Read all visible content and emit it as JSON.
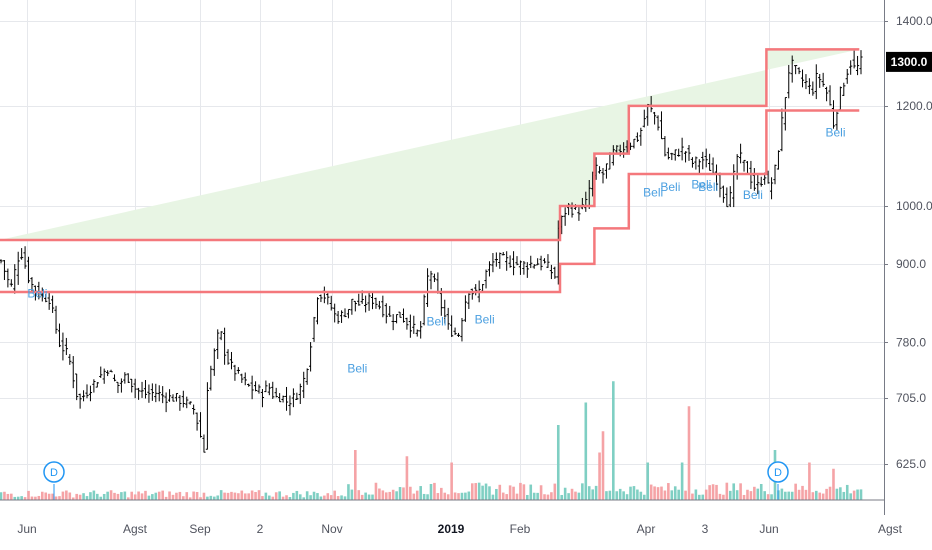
{
  "chart_data": {
    "type": "bar",
    "subtype": "ohlc-with-volume-and-channel",
    "title": "",
    "y_axis": {
      "scale": "log",
      "range": [
        590,
        1480
      ],
      "ticks": [
        {
          "value": 625,
          "label": "625.0"
        },
        {
          "value": 705,
          "label": "705.0"
        },
        {
          "value": 780,
          "label": "780.0"
        },
        {
          "value": 900,
          "label": "900.0"
        },
        {
          "value": 1000,
          "label": "1000.0"
        },
        {
          "value": 1200,
          "label": "1200.0"
        },
        {
          "value": 1400,
          "label": "1400.0"
        }
      ]
    },
    "x_axis": {
      "ticks": [
        {
          "label": "Jun",
          "bold": false
        },
        {
          "label": "Agst",
          "bold": false
        },
        {
          "label": "Sep",
          "bold": false
        },
        {
          "label": "2",
          "bold": false
        },
        {
          "label": "Nov",
          "bold": false
        },
        {
          "label": "2019",
          "bold": true
        },
        {
          "label": "Feb",
          "bold": false
        },
        {
          "label": "Apr",
          "bold": false
        },
        {
          "label": "3",
          "bold": false
        },
        {
          "label": "Jun",
          "bold": false
        },
        {
          "label": "Agst",
          "bold": false
        }
      ]
    },
    "last_price": {
      "value": 1300,
      "label": "1300.0"
    },
    "channel_segments": [
      {
        "upper": 940,
        "lower": 855
      },
      {
        "upper": 1000,
        "lower": 900
      },
      {
        "upper": 1100,
        "lower": 960
      },
      {
        "upper": 1200,
        "lower": 1060
      },
      {
        "upper": 1330,
        "lower": 1190
      }
    ],
    "price_anchors": [
      [
        905,
        860,
        925,
        870,
        850,
        845,
        780,
        760,
        700,
        715,
        730,
        745,
        720,
        735,
        715,
        710,
        712,
        706,
        705,
        700,
        690,
        640
      ],
      [
        720,
        760,
        800,
        760,
        745,
        735,
        725,
        718,
        715,
        712,
        720,
        705,
        708,
        700,
        705,
        715,
        735,
        790,
        855,
        850,
        835,
        815,
        820,
        830
      ],
      [
        840,
        835,
        845,
        832,
        815,
        820,
        805,
        790,
        895,
        845,
        800,
        790,
        860,
        850,
        890,
        910,
        905,
        900,
        898,
        902,
        900,
        880
      ],
      [
        960,
        1000,
        990,
        1000,
        1070,
        1060,
        1100,
        1110,
        1120,
        1135,
        1200,
        1170,
        1090,
        1100,
        1110,
        1080,
        1090,
        1070,
        1040,
        1000,
        1100,
        1070,
        1030,
        1060
      ],
      [
        1035,
        1050,
        1120,
        1210,
        1300,
        1280,
        1260,
        1250,
        1230,
        1270,
        1250,
        1220,
        1160,
        1220,
        1260,
        1300,
        1280,
        1300
      ]
    ],
    "buy_signals": [
      {
        "label": "Beli"
      },
      {
        "label": "Beli"
      },
      {
        "label": "Beli"
      },
      {
        "label": "Beli"
      },
      {
        "label": "Beli"
      },
      {
        "label": "Beli"
      },
      {
        "label": "Beli"
      },
      {
        "label": "Beli"
      },
      {
        "label": "Beli"
      },
      {
        "label": "Beli"
      }
    ],
    "dividend_markers": [
      {
        "label": "D"
      },
      {
        "label": "D"
      }
    ],
    "volume": {
      "colors": {
        "up": "#7fcfc3",
        "down": "#f5a3a6"
      },
      "spikes": [
        {
          "bar": 103,
          "level": 0.4
        },
        {
          "bar": 118,
          "level": 0.35
        },
        {
          "bar": 162,
          "level": 0.6
        },
        {
          "bar": 170,
          "level": 0.78
        },
        {
          "bar": 175,
          "level": 0.55
        },
        {
          "bar": 178,
          "level": 0.95
        },
        {
          "bar": 174,
          "level": 0.38
        },
        {
          "bar": 188,
          "level": 0.3
        },
        {
          "bar": 200,
          "level": 0.75
        },
        {
          "bar": 198,
          "level": 0.3
        },
        {
          "bar": 225,
          "level": 0.4
        },
        {
          "bar": 235,
          "level": 0.3
        },
        {
          "bar": 242,
          "level": 0.25
        },
        {
          "bar": 131,
          "level": 0.3
        }
      ]
    },
    "colors": {
      "candle": "#000000",
      "channel_line": "#f4787c",
      "channel_fill": "#e8f5e4",
      "grid": "#e6e8ec",
      "price_badge": "#000000",
      "dividend_circle": "#2196f3"
    },
    "grid": true,
    "legend": "none"
  }
}
